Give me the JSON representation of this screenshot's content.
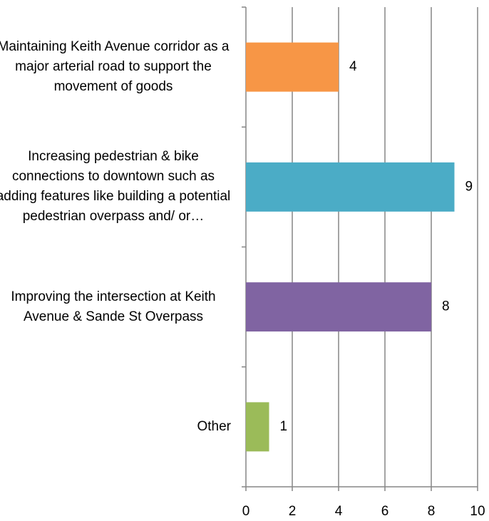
{
  "chart_data": {
    "type": "bar",
    "orientation": "horizontal",
    "categories": [
      "Maintaining Keith Avenue corridor as a major arterial road to support the movement of goods",
      "Increasing pedestrian & bike connections to downtown such as adding features like building a potential pedestrian overpass and/ or…",
      "Improving the intersection at Keith Avenue & Sande St Overpass",
      "Other"
    ],
    "values": [
      4,
      9,
      8,
      1
    ],
    "colors": [
      "#f79646",
      "#4bacc6",
      "#8064a2",
      "#9bbb59"
    ],
    "xlim": [
      0,
      10
    ],
    "xticks": [
      0,
      2,
      4,
      6,
      8,
      10
    ],
    "grid": true
  }
}
